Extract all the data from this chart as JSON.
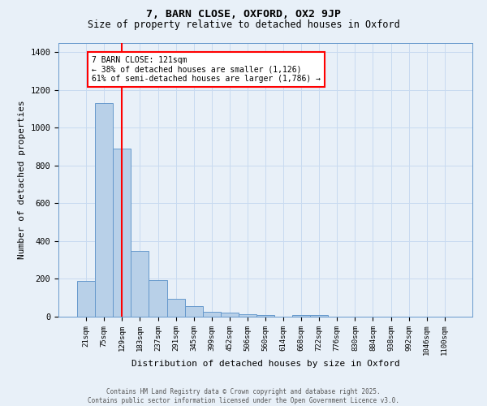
{
  "title1": "7, BARN CLOSE, OXFORD, OX2 9JP",
  "title2": "Size of property relative to detached houses in Oxford",
  "xlabel": "Distribution of detached houses by size in Oxford",
  "ylabel": "Number of detached properties",
  "categories": [
    "21sqm",
    "75sqm",
    "129sqm",
    "183sqm",
    "237sqm",
    "291sqm",
    "345sqm",
    "399sqm",
    "452sqm",
    "506sqm",
    "560sqm",
    "614sqm",
    "668sqm",
    "722sqm",
    "776sqm",
    "830sqm",
    "884sqm",
    "938sqm",
    "992sqm",
    "1046sqm",
    "1100sqm"
  ],
  "values": [
    190,
    1130,
    890,
    350,
    195,
    95,
    57,
    25,
    22,
    13,
    10,
    0,
    10,
    8,
    0,
    0,
    0,
    0,
    0,
    0,
    0
  ],
  "bar_color": "#b8d0e8",
  "bar_edge_color": "#6699cc",
  "grid_color": "#c8daf0",
  "bg_color": "#e8f0f8",
  "red_line_x": 2,
  "annotation_title": "7 BARN CLOSE: 121sqm",
  "annotation_line1": "← 38% of detached houses are smaller (1,126)",
  "annotation_line2": "61% of semi-detached houses are larger (1,786) →",
  "footer1": "Contains HM Land Registry data © Crown copyright and database right 2025.",
  "footer2": "Contains public sector information licensed under the Open Government Licence v3.0.",
  "ylim": [
    0,
    1450
  ],
  "yticks": [
    0,
    200,
    400,
    600,
    800,
    1000,
    1200,
    1400
  ]
}
